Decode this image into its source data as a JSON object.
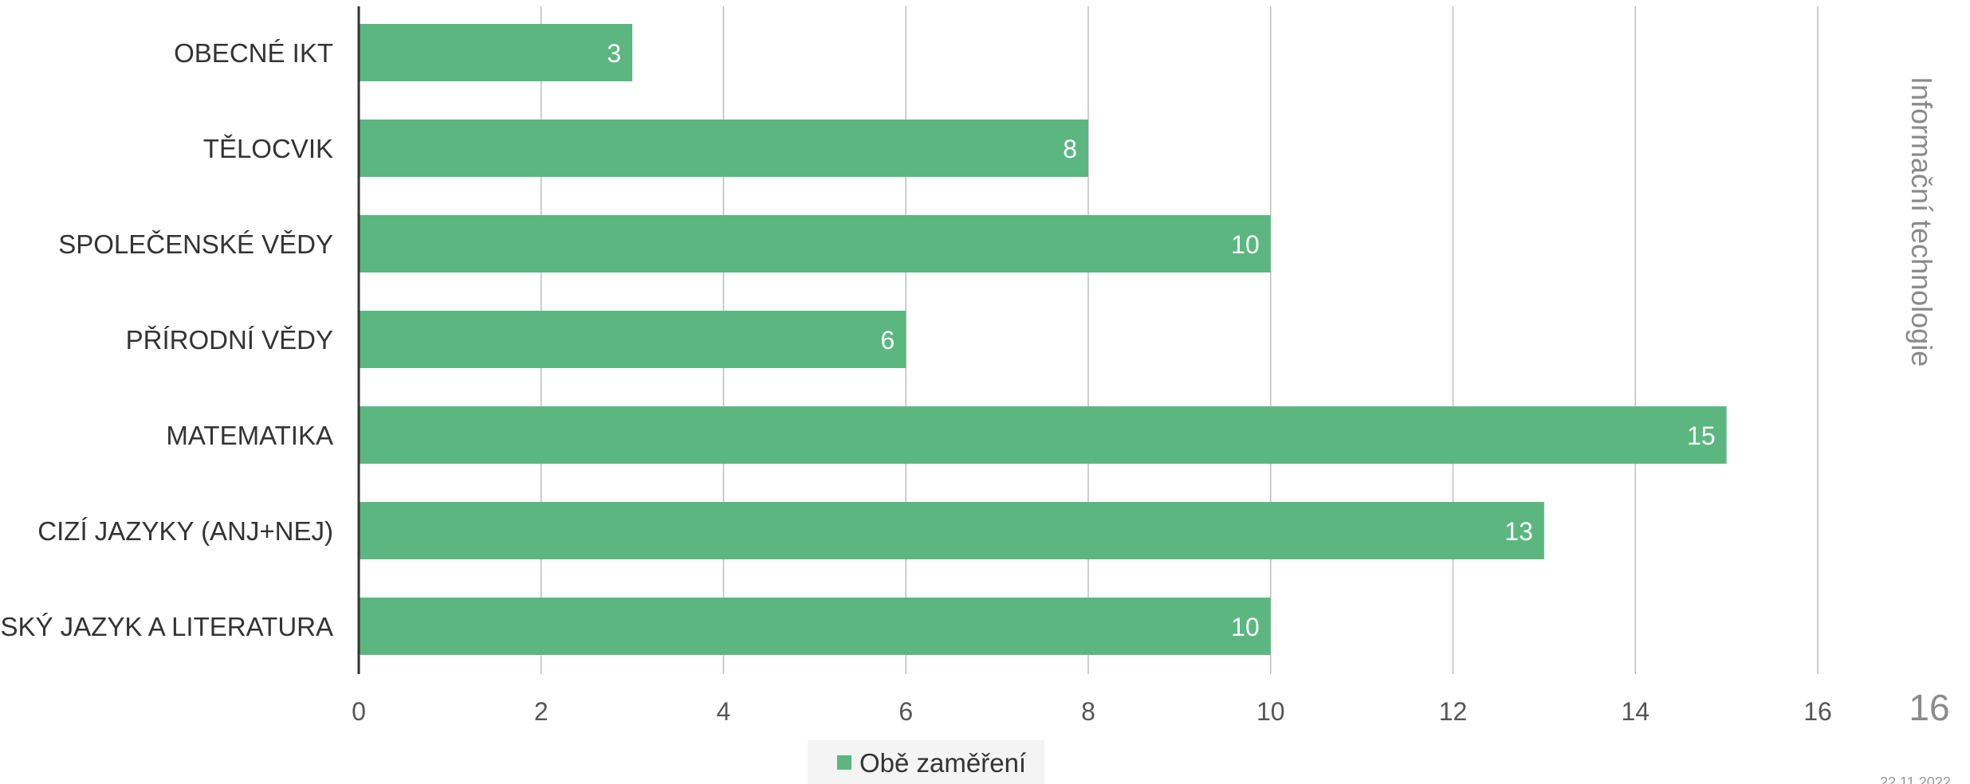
{
  "side_title": "Informační technologie",
  "page_number": "16",
  "date": "22.11.2022",
  "colors": {
    "bar": "#5bb77f",
    "grid": "#bdbdbd",
    "axis": "#333333",
    "legend_bg": "#f4f4f4"
  },
  "chart_data": {
    "type": "bar",
    "orientation": "horizontal",
    "categories": [
      "OBECNÉ IKT",
      "TĚLOCVIK",
      "SPOLEČENSKÉ VĚDY",
      "PŘÍRODNÍ VĚDY",
      "MATEMATIKA",
      "CIZÍ JAZYKY (ANJ+NEJ)",
      "ČESKÝ JAZYK A LITERATURA"
    ],
    "series": [
      {
        "name": "Obě zaměření",
        "values": [
          3,
          8,
          10,
          6,
          15,
          13,
          10
        ]
      }
    ],
    "xlim": [
      0,
      16
    ],
    "xticks": [
      0,
      2,
      4,
      6,
      8,
      10,
      12,
      14,
      16
    ],
    "grid": true,
    "legend_position": "bottom"
  }
}
